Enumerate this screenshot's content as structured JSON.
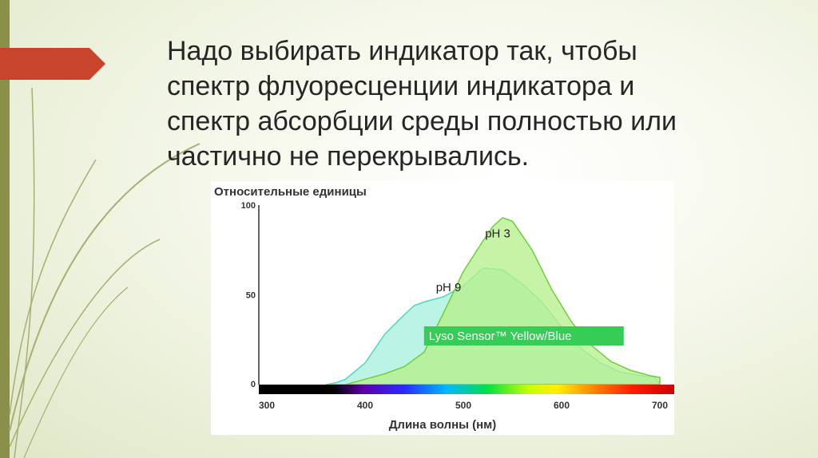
{
  "slide": {
    "title": "Надо выбирать индикатор так, чтобы\nспектр флуоресценции индикатора и\nспектр абсорбции среды полностью или\nчастично не перекрывались."
  },
  "colors": {
    "accent_bar": "#8a8f4a",
    "arrow_marker": "#c8442c",
    "ph3_fill": "#b6f08c",
    "ph3_stroke": "#6fcf3a",
    "ph9_fill": "#a8f1dc",
    "ph9_stroke": "#4fd6c4",
    "label_box": "#36cc56"
  },
  "chart_data": {
    "type": "area",
    "ylabel": "Относительные единицы",
    "xlabel": "Длина волны (нм)",
    "xlim": [
      300,
      700
    ],
    "ylim": [
      0,
      100
    ],
    "x_ticks": [
      300,
      400,
      500,
      600,
      700
    ],
    "y_ticks": [
      0,
      50,
      100
    ],
    "grid": false,
    "spectrum_bar": true,
    "annotation": "Lyso Sensor™ Yellow/Blue",
    "series": [
      {
        "name": "pH 9",
        "points": [
          [
            360,
            0
          ],
          [
            370,
            1
          ],
          [
            380,
            3
          ],
          [
            400,
            12
          ],
          [
            420,
            28
          ],
          [
            440,
            39
          ],
          [
            450,
            44
          ],
          [
            460,
            46
          ],
          [
            480,
            49
          ],
          [
            500,
            55
          ],
          [
            520,
            65
          ],
          [
            540,
            64
          ],
          [
            560,
            56
          ],
          [
            580,
            46
          ],
          [
            600,
            32
          ],
          [
            620,
            20
          ],
          [
            640,
            12
          ],
          [
            660,
            7
          ],
          [
            680,
            5
          ],
          [
            695,
            4
          ],
          [
            700,
            0
          ]
        ]
      },
      {
        "name": "pH 3",
        "points": [
          [
            380,
            0
          ],
          [
            400,
            3
          ],
          [
            420,
            6
          ],
          [
            440,
            10
          ],
          [
            460,
            18
          ],
          [
            480,
            40
          ],
          [
            500,
            63
          ],
          [
            520,
            80
          ],
          [
            530,
            88
          ],
          [
            540,
            93
          ],
          [
            550,
            91
          ],
          [
            570,
            75
          ],
          [
            590,
            53
          ],
          [
            610,
            35
          ],
          [
            630,
            22
          ],
          [
            650,
            13
          ],
          [
            670,
            8
          ],
          [
            690,
            5
          ],
          [
            700,
            4
          ],
          [
            700,
            0
          ]
        ]
      }
    ]
  }
}
